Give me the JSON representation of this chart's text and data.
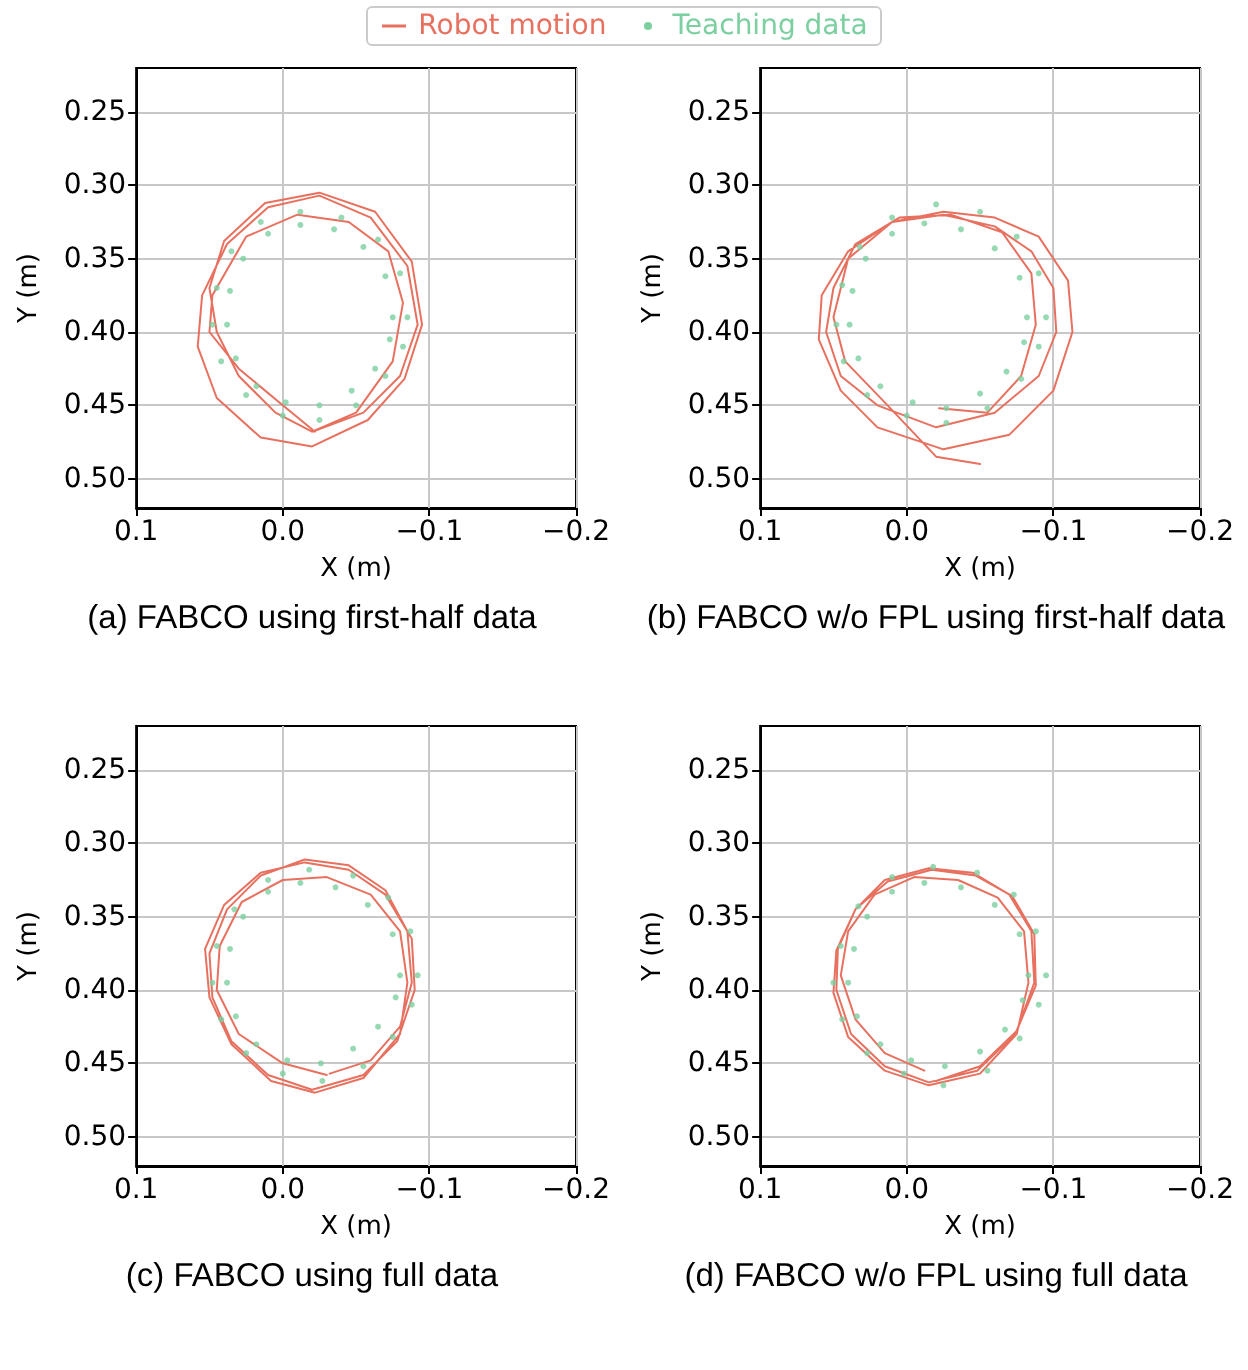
{
  "chart_data": [
    {
      "type": "line",
      "title": "(a) FABCO using first-half data",
      "xlabel": "X (m)",
      "ylabel": "Y (m)",
      "xlim": [
        0.1,
        -0.2
      ],
      "ylim": [
        0.52,
        0.22
      ],
      "xticks": [
        {
          "value": 0.1,
          "label": "0.1"
        },
        {
          "value": 0,
          "label": "0.0"
        },
        {
          "value": -0.1,
          "label": "−0.1"
        },
        {
          "value": -0.2,
          "label": "−0.2"
        }
      ],
      "yticks": [
        {
          "value": 0.25,
          "label": "0.25"
        },
        {
          "value": 0.3,
          "label": "0.30"
        },
        {
          "value": 0.35,
          "label": "0.35"
        },
        {
          "value": 0.4,
          "label": "0.40"
        },
        {
          "value": 0.45,
          "label": "0.45"
        },
        {
          "value": 0.5,
          "label": "0.50"
        }
      ],
      "grid": true,
      "legend": "top",
      "marker": "none",
      "line_style": "solid",
      "series": [
        {
          "name": "Robot motion",
          "color": "#e8705f",
          "x": [
            -0.02,
            -0.055,
            -0.08,
            -0.092,
            -0.085,
            -0.06,
            -0.025,
            0.01,
            0.038,
            0.055,
            0.058,
            0.045,
            0.015,
            -0.02,
            -0.058,
            -0.083,
            -0.095,
            -0.088,
            -0.063,
            -0.025,
            0.012,
            0.04,
            0.05,
            0.045,
            0.03,
            0.005,
            -0.02,
            -0.05,
            -0.075,
            -0.082,
            -0.072,
            -0.045,
            -0.01,
            0.025,
            0.048,
            0.05,
            0.03,
            0.0,
            -0.022
          ],
          "values": [
            0.468,
            0.455,
            0.43,
            0.395,
            0.355,
            0.322,
            0.307,
            0.315,
            0.34,
            0.375,
            0.41,
            0.445,
            0.472,
            0.478,
            0.46,
            0.432,
            0.395,
            0.352,
            0.318,
            0.305,
            0.312,
            0.338,
            0.37,
            0.4,
            0.43,
            0.455,
            0.468,
            0.455,
            0.42,
            0.38,
            0.345,
            0.325,
            0.32,
            0.335,
            0.375,
            0.4,
            0.425,
            0.45,
            0.468
          ]
        },
        {
          "name": "Teaching data",
          "type": "scatter",
          "marker": "circle",
          "color": "#7ccfa0",
          "x": [
            -0.085,
            -0.08,
            -0.065,
            -0.04,
            -0.012,
            0.015,
            0.035,
            0.045,
            0.048,
            0.042,
            0.025,
            0.0,
            -0.025,
            -0.05,
            -0.07,
            -0.082,
            -0.075,
            -0.07,
            -0.055,
            -0.035,
            -0.012,
            0.01,
            0.027,
            0.036,
            0.038,
            0.032,
            0.018,
            -0.002,
            -0.025,
            -0.047,
            -0.063,
            -0.073
          ],
          "values": [
            0.39,
            0.36,
            0.337,
            0.322,
            0.318,
            0.325,
            0.345,
            0.37,
            0.395,
            0.42,
            0.443,
            0.457,
            0.46,
            0.45,
            0.43,
            0.41,
            0.39,
            0.362,
            0.342,
            0.33,
            0.327,
            0.333,
            0.35,
            0.372,
            0.395,
            0.418,
            0.437,
            0.448,
            0.45,
            0.44,
            0.425,
            0.405
          ]
        }
      ]
    },
    {
      "type": "line",
      "title": "(b) FABCO w/o FPL using first-half data",
      "xlabel": "X (m)",
      "ylabel": "Y (m)",
      "xlim": [
        0.1,
        -0.2
      ],
      "ylim": [
        0.52,
        0.22
      ],
      "xticks": [
        {
          "value": 0.1,
          "label": "0.1"
        },
        {
          "value": 0,
          "label": "0.0"
        },
        {
          "value": -0.1,
          "label": "−0.1"
        },
        {
          "value": -0.2,
          "label": "−0.2"
        }
      ],
      "yticks": [
        {
          "value": 0.25,
          "label": "0.25"
        },
        {
          "value": 0.3,
          "label": "0.30"
        },
        {
          "value": 0.35,
          "label": "0.35"
        },
        {
          "value": 0.4,
          "label": "0.40"
        },
        {
          "value": 0.45,
          "label": "0.45"
        },
        {
          "value": 0.5,
          "label": "0.50"
        }
      ],
      "grid": true,
      "marker": "none",
      "line_style": "solid",
      "series": [
        {
          "color": "#e8705f",
          "x": [
            -0.022,
            -0.055,
            -0.078,
            -0.088,
            -0.085,
            -0.065,
            -0.03,
            0.005,
            0.035,
            0.05,
            0.055,
            0.045,
            0.02,
            -0.02,
            -0.06,
            -0.09,
            -0.102,
            -0.1,
            -0.085,
            -0.06,
            -0.025,
            0.01,
            0.04,
            0.058,
            0.06,
            0.045,
            0.02,
            -0.025,
            -0.07,
            -0.1,
            -0.113,
            -0.11,
            -0.09,
            -0.06,
            -0.025,
            0.01,
            0.04,
            0.05,
            0.042,
            0.015,
            -0.02,
            -0.05
          ],
          "values": [
            0.452,
            0.455,
            0.43,
            0.395,
            0.36,
            0.332,
            0.32,
            0.322,
            0.34,
            0.37,
            0.4,
            0.43,
            0.45,
            0.465,
            0.455,
            0.43,
            0.4,
            0.37,
            0.345,
            0.328,
            0.32,
            0.325,
            0.345,
            0.375,
            0.405,
            0.44,
            0.465,
            0.48,
            0.47,
            0.44,
            0.4,
            0.365,
            0.335,
            0.322,
            0.318,
            0.325,
            0.35,
            0.39,
            0.42,
            0.448,
            0.485,
            0.49
          ]
        },
        {
          "type": "scatter",
          "marker": "circle",
          "color": "#7ccfa0",
          "x": [
            -0.095,
            -0.09,
            -0.075,
            -0.05,
            -0.02,
            0.01,
            0.032,
            0.044,
            0.048,
            0.043,
            0.027,
            0.0,
            -0.027,
            -0.055,
            -0.078,
            -0.09,
            -0.082,
            -0.077,
            -0.06,
            -0.037,
            -0.012,
            0.01,
            0.028,
            0.037,
            0.039,
            0.033,
            0.018,
            -0.004,
            -0.027,
            -0.05,
            -0.068,
            -0.08
          ],
          "values": [
            0.39,
            0.36,
            0.335,
            0.318,
            0.313,
            0.322,
            0.342,
            0.368,
            0.395,
            0.42,
            0.443,
            0.457,
            0.462,
            0.452,
            0.432,
            0.41,
            0.39,
            0.363,
            0.343,
            0.33,
            0.326,
            0.333,
            0.35,
            0.372,
            0.395,
            0.418,
            0.437,
            0.448,
            0.452,
            0.442,
            0.427,
            0.407
          ]
        }
      ]
    },
    {
      "type": "line",
      "title": "(c) FABCO using full data",
      "xlabel": "X (m)",
      "ylabel": "Y (m)",
      "xlim": [
        0.1,
        -0.2
      ],
      "ylim": [
        0.52,
        0.22
      ],
      "xticks": [
        {
          "value": 0.1,
          "label": "0.1"
        },
        {
          "value": 0,
          "label": "0.0"
        },
        {
          "value": -0.1,
          "label": "−0.1"
        },
        {
          "value": -0.2,
          "label": "−0.2"
        }
      ],
      "yticks": [
        {
          "value": 0.25,
          "label": "0.25"
        },
        {
          "value": 0.3,
          "label": "0.30"
        },
        {
          "value": 0.35,
          "label": "0.35"
        },
        {
          "value": 0.4,
          "label": "0.40"
        },
        {
          "value": 0.45,
          "label": "0.45"
        },
        {
          "value": 0.5,
          "label": "0.50"
        }
      ],
      "grid": true,
      "marker": "none",
      "line_style": "solid",
      "series": [
        {
          "color": "#e8705f",
          "x": [
            -0.032,
            -0.06,
            -0.08,
            -0.088,
            -0.085,
            -0.07,
            -0.045,
            -0.015,
            0.015,
            0.038,
            0.05,
            0.048,
            0.035,
            0.01,
            -0.02,
            -0.055,
            -0.078,
            -0.09,
            -0.088,
            -0.07,
            -0.045,
            -0.015,
            0.015,
            0.04,
            0.053,
            0.05,
            0.035,
            0.008,
            -0.022,
            -0.055,
            -0.08,
            -0.085,
            -0.08,
            -0.06,
            -0.03,
            0.0,
            0.028,
            0.043,
            0.045,
            0.03,
            0.0,
            -0.03
          ],
          "values": [
            0.457,
            0.448,
            0.425,
            0.395,
            0.36,
            0.332,
            0.315,
            0.311,
            0.322,
            0.345,
            0.375,
            0.405,
            0.435,
            0.458,
            0.468,
            0.458,
            0.435,
            0.4,
            0.365,
            0.335,
            0.318,
            0.313,
            0.32,
            0.342,
            0.372,
            0.405,
            0.437,
            0.462,
            0.47,
            0.46,
            0.43,
            0.395,
            0.36,
            0.335,
            0.323,
            0.325,
            0.34,
            0.37,
            0.4,
            0.43,
            0.45,
            0.458
          ]
        },
        {
          "type": "scatter",
          "marker": "circle",
          "color": "#7ccfa0",
          "x": [
            -0.092,
            -0.087,
            -0.072,
            -0.048,
            -0.018,
            0.01,
            0.033,
            0.045,
            0.048,
            0.042,
            0.025,
            0.0,
            -0.027,
            -0.055,
            -0.075,
            -0.088,
            -0.08,
            -0.075,
            -0.058,
            -0.036,
            -0.012,
            0.01,
            0.027,
            0.036,
            0.038,
            0.032,
            0.018,
            -0.003,
            -0.026,
            -0.048,
            -0.065,
            -0.077
          ],
          "values": [
            0.39,
            0.36,
            0.337,
            0.322,
            0.318,
            0.325,
            0.345,
            0.37,
            0.395,
            0.42,
            0.443,
            0.457,
            0.462,
            0.452,
            0.432,
            0.41,
            0.39,
            0.362,
            0.342,
            0.33,
            0.327,
            0.333,
            0.35,
            0.372,
            0.395,
            0.418,
            0.437,
            0.448,
            0.45,
            0.44,
            0.425,
            0.405
          ]
        }
      ]
    },
    {
      "type": "line",
      "title": "(d) FABCO w/o FPL using full data",
      "xlabel": "X (m)",
      "ylabel": "Y (m)",
      "xlim": [
        0.1,
        -0.2
      ],
      "ylim": [
        0.52,
        0.22
      ],
      "xticks": [
        {
          "value": 0.1,
          "label": "0.1"
        },
        {
          "value": 0,
          "label": "0.0"
        },
        {
          "value": -0.1,
          "label": "−0.1"
        },
        {
          "value": -0.2,
          "label": "−0.2"
        }
      ],
      "yticks": [
        {
          "value": 0.25,
          "label": "0.25"
        },
        {
          "value": 0.3,
          "label": "0.30"
        },
        {
          "value": 0.35,
          "label": "0.35"
        },
        {
          "value": 0.4,
          "label": "0.40"
        },
        {
          "value": 0.45,
          "label": "0.45"
        },
        {
          "value": 0.5,
          "label": "0.50"
        }
      ],
      "grid": true,
      "marker": "none",
      "line_style": "solid",
      "series": [
        {
          "color": "#e8705f",
          "x": [
            -0.02,
            -0.05,
            -0.075,
            -0.087,
            -0.085,
            -0.07,
            -0.045,
            -0.015,
            0.015,
            0.035,
            0.047,
            0.048,
            0.038,
            0.015,
            -0.015,
            -0.048,
            -0.074,
            -0.088,
            -0.087,
            -0.072,
            -0.047,
            -0.017,
            0.013,
            0.035,
            0.048,
            0.05,
            0.04,
            0.015,
            -0.015,
            -0.05,
            -0.075,
            -0.083,
            -0.08,
            -0.062,
            -0.035,
            -0.005,
            0.022,
            0.04,
            0.045,
            0.035,
            0.015,
            -0.012
          ],
          "values": [
            0.462,
            0.452,
            0.428,
            0.395,
            0.36,
            0.335,
            0.32,
            0.317,
            0.325,
            0.345,
            0.372,
            0.4,
            0.43,
            0.452,
            0.463,
            0.455,
            0.43,
            0.397,
            0.362,
            0.336,
            0.322,
            0.318,
            0.326,
            0.345,
            0.373,
            0.402,
            0.432,
            0.455,
            0.465,
            0.457,
            0.43,
            0.395,
            0.36,
            0.337,
            0.325,
            0.323,
            0.335,
            0.36,
            0.39,
            0.42,
            0.443,
            0.455
          ]
        },
        {
          "type": "scatter",
          "marker": "circle",
          "color": "#7ccfa0",
          "x": [
            -0.095,
            -0.088,
            -0.073,
            -0.048,
            -0.018,
            0.01,
            0.033,
            0.045,
            0.05,
            0.044,
            0.027,
            0.002,
            -0.025,
            -0.055,
            -0.077,
            -0.09,
            -0.083,
            -0.077,
            -0.06,
            -0.037,
            -0.012,
            0.01,
            0.027,
            0.036,
            0.04,
            0.034,
            0.018,
            -0.003,
            -0.026,
            -0.05,
            -0.067,
            -0.079
          ],
          "values": [
            0.39,
            0.36,
            0.335,
            0.32,
            0.316,
            0.323,
            0.343,
            0.37,
            0.395,
            0.42,
            0.443,
            0.457,
            0.465,
            0.455,
            0.433,
            0.41,
            0.39,
            0.362,
            0.342,
            0.33,
            0.327,
            0.333,
            0.35,
            0.372,
            0.395,
            0.418,
            0.437,
            0.448,
            0.452,
            0.442,
            0.427,
            0.407
          ]
        }
      ]
    }
  ]
}
